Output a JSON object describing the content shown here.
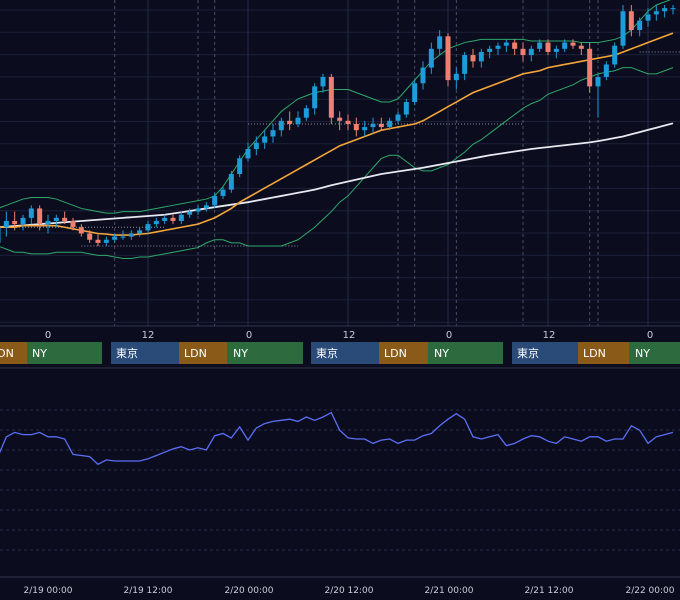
{
  "colors": {
    "background": "#0b0d1f",
    "grid": "#1c2138",
    "up": "#1e9cd8",
    "down": "#f07f72",
    "bollinger_mid": "#f5a53a",
    "bollinger_band": "#2fa86a",
    "sma_long": "#e8e8f0",
    "oscillator": "#5b6ef5",
    "session_tokyo": "#2a4a78",
    "session_ldn": "#8a5a18",
    "session_ny": "#2d6b3e"
  },
  "price_axis_labels": [
    "0",
    "12",
    "0",
    "12",
    "0",
    "12",
    "0"
  ],
  "sessions": [
    {
      "labels": [
        "",
        "LDN",
        "NY"
      ]
    },
    {
      "labels": [
        "東京",
        "LDN",
        "NY"
      ]
    },
    {
      "labels": [
        "東京",
        "LDN",
        "NY"
      ]
    },
    {
      "labels": [
        "東京",
        "LDN",
        "NY"
      ]
    }
  ],
  "date_axis_labels": [
    "2/19 00:00",
    "2/19 12:00",
    "2/20 00:00",
    "2/20 12:00",
    "2/21 00:00",
    "2/21 12:00",
    "2/22 00:00"
  ],
  "chart_data": [
    {
      "type": "candlestick",
      "ylim": [
        0,
        100
      ],
      "x_hours_start": -6,
      "x_hours_end": 76,
      "hour_step": 1,
      "candles_ohlc": [
        [
          24,
          32,
          18,
          29
        ],
        [
          29,
          34,
          26,
          31
        ],
        [
          31,
          34,
          28,
          30
        ],
        [
          30,
          33,
          28,
          32
        ],
        [
          32,
          36,
          30,
          35
        ],
        [
          35,
          36,
          28,
          30
        ],
        [
          30,
          33,
          27,
          31
        ],
        [
          31,
          33,
          29,
          32
        ],
        [
          32,
          34,
          30,
          31
        ],
        [
          31,
          32,
          28,
          29
        ],
        [
          29,
          30,
          26,
          27
        ],
        [
          27,
          28,
          24,
          25
        ],
        [
          25,
          27,
          23,
          24
        ],
        [
          24,
          26,
          23,
          25
        ],
        [
          25,
          27,
          24,
          26
        ],
        [
          26,
          28,
          25,
          26
        ],
        [
          26,
          28,
          25,
          27
        ],
        [
          27,
          29,
          26,
          28
        ],
        [
          28,
          31,
          27,
          30
        ],
        [
          30,
          32,
          29,
          31
        ],
        [
          31,
          33,
          30,
          32
        ],
        [
          32,
          33,
          30,
          31
        ],
        [
          31,
          34,
          30,
          33
        ],
        [
          33,
          35,
          32,
          34
        ],
        [
          34,
          36,
          33,
          35
        ],
        [
          35,
          37,
          34,
          36
        ],
        [
          36,
          40,
          35,
          39
        ],
        [
          39,
          42,
          38,
          41
        ],
        [
          41,
          47,
          40,
          46
        ],
        [
          46,
          52,
          45,
          51
        ],
        [
          51,
          56,
          50,
          54
        ],
        [
          54,
          58,
          52,
          56
        ],
        [
          56,
          60,
          54,
          58
        ],
        [
          58,
          62,
          56,
          60
        ],
        [
          60,
          64,
          58,
          63
        ],
        [
          63,
          66,
          60,
          62
        ],
        [
          62,
          66,
          61,
          64
        ],
        [
          64,
          68,
          63,
          67
        ],
        [
          67,
          75,
          65,
          74
        ],
        [
          74,
          78,
          72,
          77
        ],
        [
          77,
          78,
          62,
          64
        ],
        [
          64,
          66,
          60,
          63
        ],
        [
          63,
          65,
          60,
          62
        ],
        [
          62,
          64,
          58,
          60
        ],
        [
          60,
          63,
          58,
          61
        ],
        [
          61,
          64,
          59,
          62
        ],
        [
          62,
          64,
          60,
          61
        ],
        [
          61,
          64,
          60,
          63
        ],
        [
          63,
          66,
          62,
          65
        ],
        [
          65,
          70,
          64,
          69
        ],
        [
          69,
          76,
          68,
          75
        ],
        [
          75,
          82,
          73,
          80
        ],
        [
          80,
          88,
          78,
          86
        ],
        [
          86,
          92,
          84,
          90
        ],
        [
          90,
          91,
          74,
          76
        ],
        [
          76,
          80,
          73,
          78
        ],
        [
          78,
          85,
          76,
          84
        ],
        [
          84,
          86,
          80,
          82
        ],
        [
          82,
          86,
          80,
          85
        ],
        [
          85,
          87,
          83,
          86
        ],
        [
          86,
          88,
          84,
          87
        ],
        [
          87,
          89,
          85,
          88
        ],
        [
          88,
          89,
          84,
          86
        ],
        [
          86,
          88,
          82,
          84
        ],
        [
          84,
          87,
          82,
          86
        ],
        [
          86,
          89,
          85,
          88
        ],
        [
          88,
          89,
          84,
          85
        ],
        [
          85,
          87,
          83,
          86
        ],
        [
          86,
          89,
          85,
          88
        ],
        [
          88,
          89,
          86,
          87
        ],
        [
          87,
          88,
          84,
          86
        ],
        [
          86,
          88,
          72,
          74
        ],
        [
          74,
          78,
          64,
          77
        ],
        [
          77,
          82,
          76,
          81
        ],
        [
          81,
          88,
          80,
          87
        ],
        [
          87,
          100,
          86,
          98
        ],
        [
          98,
          100,
          90,
          92
        ],
        [
          92,
          96,
          90,
          95
        ],
        [
          95,
          99,
          93,
          97
        ],
        [
          97,
          100,
          95,
          98
        ],
        [
          98,
          100,
          96,
          99
        ],
        [
          99,
          100,
          97,
          99
        ]
      ],
      "bollinger_mid": [
        29,
        29,
        29,
        29.5,
        29.5,
        29.5,
        29.5,
        29.5,
        29,
        28.5,
        28,
        27.5,
        27,
        26.8,
        26.5,
        26.5,
        26.5,
        26.8,
        27,
        27.5,
        28,
        28.5,
        29,
        29.5,
        30,
        31,
        32,
        33.5,
        35,
        37,
        38.5,
        40,
        41.5,
        43,
        44.5,
        46,
        47.5,
        49,
        50.5,
        52,
        53.5,
        55,
        56,
        57,
        58,
        59,
        60,
        60.5,
        61,
        61.5,
        62,
        63,
        64.5,
        66,
        67.5,
        69,
        70.5,
        72,
        73,
        74,
        75,
        76,
        77,
        78,
        78.5,
        79,
        80,
        80.5,
        81,
        81.5,
        82,
        82.5,
        83,
        83.5,
        84,
        85,
        86,
        87,
        88,
        89,
        90,
        91
      ],
      "bollinger_upper": [
        35,
        36,
        37,
        38,
        38.5,
        38.5,
        38.5,
        38,
        37,
        36,
        35,
        34.5,
        34,
        33.5,
        33.5,
        34,
        34,
        34,
        34.5,
        35,
        35.5,
        36,
        36.5,
        37,
        37.5,
        38,
        39,
        42,
        46,
        50,
        54,
        57,
        60,
        63,
        66,
        68,
        70,
        71,
        72,
        72.5,
        73,
        73,
        73,
        72,
        71,
        70,
        69,
        69,
        70,
        73,
        76,
        79,
        82,
        84,
        86,
        87,
        88,
        88.5,
        89,
        89,
        89,
        89,
        89,
        89,
        88.5,
        88.5,
        88.5,
        88.5,
        88.5,
        88.5,
        88,
        88,
        88,
        88.5,
        89,
        90,
        92,
        95,
        98,
        100,
        101,
        102
      ],
      "bollinger_lower": [
        23,
        22,
        21,
        21,
        20.5,
        20.5,
        20.5,
        21,
        21,
        21,
        21,
        20.5,
        20,
        20,
        19.5,
        19,
        19,
        19.5,
        19.5,
        20,
        20.5,
        21,
        21.5,
        22,
        22.5,
        24,
        25,
        25,
        24,
        24,
        23,
        23,
        23,
        23,
        23,
        24,
        25,
        27,
        29,
        31.5,
        34,
        37,
        39,
        42,
        45,
        48,
        51,
        52,
        52,
        50,
        48,
        47,
        47,
        48,
        49,
        51,
        53,
        55.5,
        57,
        59,
        61,
        63,
        65,
        67,
        68.5,
        69.5,
        71.5,
        72.5,
        73.5,
        74.5,
        76,
        77,
        78,
        78.5,
        79,
        80,
        80,
        79,
        78,
        78,
        79,
        80
      ],
      "sma_long": [
        29,
        29.2,
        29.4,
        29.6,
        29.8,
        30,
        30.2,
        30.4,
        30.6,
        30.8,
        31,
        31.2,
        31.4,
        31.6,
        31.8,
        32,
        32.2,
        32.4,
        32.6,
        32.8,
        33,
        33.4,
        33.8,
        34.2,
        34.6,
        35,
        35.4,
        35.8,
        36.2,
        36.6,
        37,
        37.5,
        38,
        38.5,
        39,
        39.5,
        40,
        40.5,
        41,
        41.7,
        42.4,
        43,
        43.6,
        44.2,
        44.8,
        45.4,
        46,
        46.4,
        46.8,
        47.2,
        47.6,
        48,
        48.5,
        49,
        49.5,
        50,
        50.5,
        51,
        51.5,
        52,
        52.4,
        52.8,
        53.2,
        53.6,
        54,
        54.3,
        54.6,
        54.9,
        55.2,
        55.5,
        55.8,
        56.1,
        56.5,
        57,
        57.5,
        58,
        58.7,
        59.4,
        60.1,
        60.8,
        61.5,
        62.2
      ],
      "reference_dotted_levels": [
        {
          "y": 29,
          "from_hour": -6,
          "to_hour": 14
        },
        {
          "y": 23,
          "from_hour": 4,
          "to_hour": 30
        },
        {
          "y": 62,
          "from_hour": 24,
          "to_hour": 57
        },
        {
          "y": 85,
          "from_hour": 71,
          "to_hour": 76
        }
      ]
    },
    {
      "type": "line",
      "ylim": [
        0,
        100
      ],
      "x_hours_start": -6,
      "x_hours_end": 76,
      "values": [
        44,
        62,
        66,
        64,
        64,
        66,
        62,
        62,
        60,
        46,
        45,
        44,
        37,
        41,
        40,
        40,
        40,
        40,
        42,
        45,
        48,
        51,
        53,
        50,
        52,
        50,
        63,
        65,
        61,
        71,
        59,
        70,
        74,
        76,
        77,
        78,
        76,
        80,
        77,
        80,
        84,
        68,
        61,
        60,
        60,
        56,
        59,
        60,
        56,
        59,
        59,
        63,
        65,
        72,
        78,
        83,
        78,
        62,
        60,
        62,
        64,
        54,
        56,
        60,
        63,
        62,
        58,
        56,
        62,
        60,
        58,
        62,
        62,
        58,
        60,
        60,
        72,
        68,
        56,
        62,
        64,
        66
      ]
    }
  ]
}
